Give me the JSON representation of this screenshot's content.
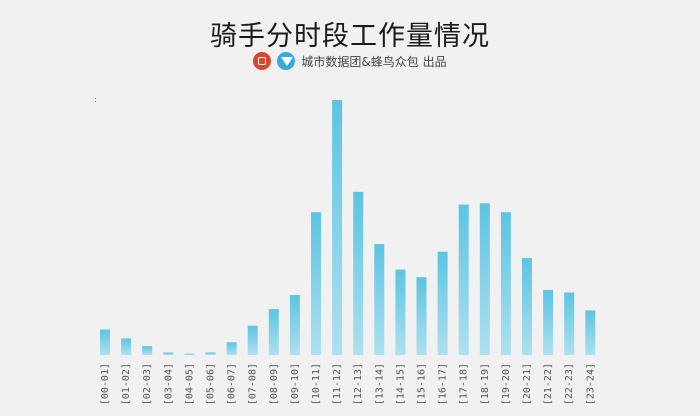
{
  "title": "骑手分时段工作量情况",
  "source": "城市数据团&蜂鸟众包  出品",
  "logos": [
    "city-data-group-logo",
    "fengniao-crowdsourcing-logo"
  ],
  "stray_mark": ":",
  "colors": {
    "bar_top": "#5bc4e2",
    "bar_bottom": "#aee0ef",
    "background": "#f1f1f1"
  },
  "chart_data": {
    "type": "bar",
    "title": "骑手分时段工作量情况",
    "xlabel": "",
    "ylabel": "",
    "grid": false,
    "categories": [
      "[00-01]",
      "[01-02]",
      "[02-03]",
      "[03-04]",
      "[04-05]",
      "[05-06]",
      "[06-07]",
      "[07-08]",
      "[08-09]",
      "[09-10]",
      "[10-11]",
      "[11-12]",
      "[12-13]",
      "[13-14]",
      "[14-15]",
      "[15-16]",
      "[16-17]",
      "[17-18]",
      "[18-19]",
      "[19-20]",
      "[20-21]",
      "[21-22]",
      "[22-23]",
      "[23-24]"
    ],
    "values": [
      10,
      6.5,
      3.5,
      1,
      0.5,
      1,
      5,
      11.5,
      18,
      23.5,
      56,
      100,
      64,
      43.5,
      33.5,
      30.5,
      40.5,
      59,
      59.5,
      56,
      38,
      25.5,
      24.5,
      17.5
    ],
    "ylim": [
      0,
      100
    ]
  }
}
